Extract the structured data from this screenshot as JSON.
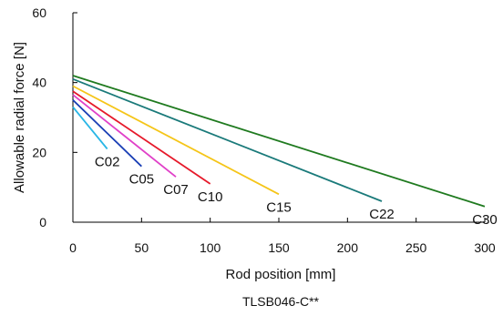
{
  "chart_data": {
    "type": "line",
    "xlabel": "Rod position [mm]",
    "ylabel": "Allowable radial force [N]",
    "caption": "TLSB046-C**",
    "xlim": [
      0,
      300
    ],
    "ylim": [
      0,
      60
    ],
    "xticks": [
      0,
      50,
      100,
      150,
      200,
      250,
      300
    ],
    "yticks": [
      0,
      20,
      40,
      60
    ],
    "grid": false,
    "series": [
      {
        "name": "C02",
        "color": "#29b6e6",
        "x": [
          0,
          25
        ],
        "y": [
          33,
          21
        ]
      },
      {
        "name": "C05",
        "color": "#1a3fb5",
        "x": [
          0,
          50
        ],
        "y": [
          35,
          16
        ]
      },
      {
        "name": "C07",
        "color": "#e040c8",
        "x": [
          0,
          75
        ],
        "y": [
          36.5,
          13
        ]
      },
      {
        "name": "C10",
        "color": "#e6192a",
        "x": [
          0,
          100
        ],
        "y": [
          37.5,
          11
        ]
      },
      {
        "name": "C15",
        "color": "#f5c518",
        "x": [
          0,
          150
        ],
        "y": [
          39,
          8
        ]
      },
      {
        "name": "C22",
        "color": "#1a7a7a",
        "x": [
          0,
          225
        ],
        "y": [
          41,
          6
        ]
      },
      {
        "name": "C30",
        "color": "#1f7a1f",
        "x": [
          0,
          300
        ],
        "y": [
          42,
          4.5
        ]
      }
    ]
  }
}
